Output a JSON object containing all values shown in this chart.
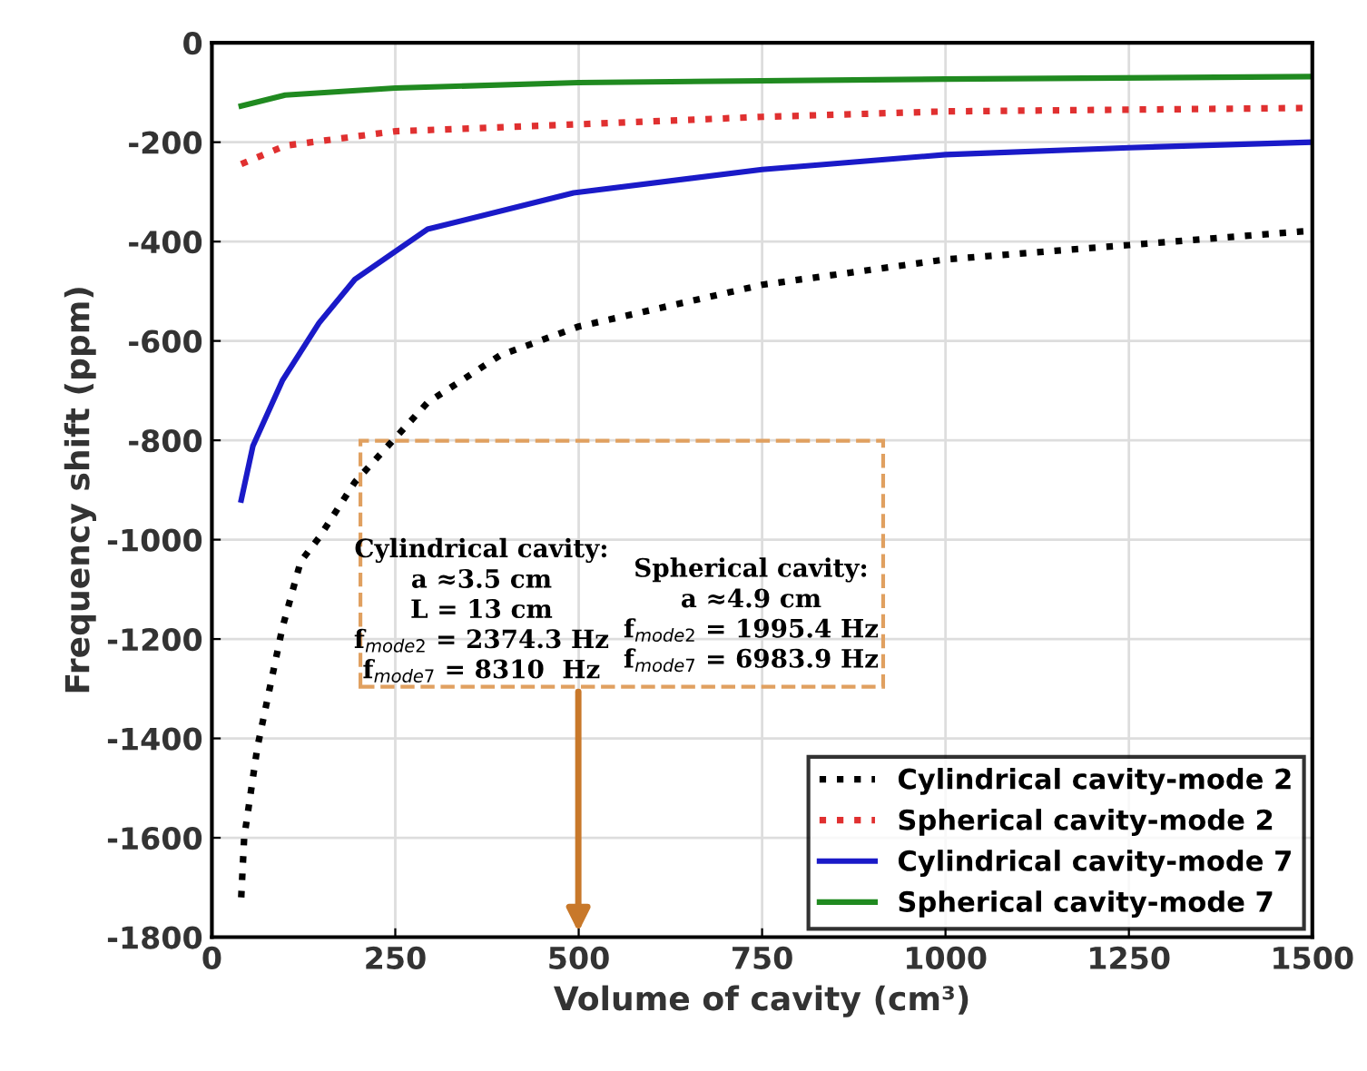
{
  "chart_data": {
    "type": "line",
    "xlabel": "Volume of cavity (cm³)",
    "ylabel": "Frequency shift (ppm)",
    "xlim": [
      0,
      1500
    ],
    "ylim": [
      -1800,
      0
    ],
    "xticks": [
      0,
      250,
      500,
      750,
      1000,
      1250,
      1500
    ],
    "yticks": [
      -1800,
      -1600,
      -1400,
      -1200,
      -1000,
      -800,
      -600,
      -400,
      -200,
      0
    ],
    "grid": true,
    "legend": "bottom right",
    "series": [
      {
        "name": "Cylindrical cavity-mode 2",
        "color": "#000000",
        "line_style": "dotted",
        "x": [
          40,
          44,
          62,
          96,
          121,
          146,
          195,
          294,
          393,
          500,
          750,
          1000,
          1250,
          1500
        ],
        "values": [
          -1720,
          -1600,
          -1418,
          -1178,
          -1044,
          -996,
          -884,
          -724,
          -629,
          -571,
          -487,
          -436,
          -407,
          -378
        ]
      },
      {
        "name": "Spherical cavity-mode 2",
        "color": "#e03030",
        "line_style": "dotted",
        "x": [
          40,
          100,
          250,
          500,
          750,
          1000,
          1500
        ],
        "values": [
          -244,
          -207,
          -178,
          -164,
          -149,
          -138,
          -131
        ]
      },
      {
        "name": "Cylindrical cavity-mode 7",
        "color": "#1a1ac8",
        "line_style": "solid",
        "x": [
          40,
          56,
          96,
          146,
          195,
          294,
          493,
          750,
          1000,
          1250,
          1500
        ],
        "values": [
          -920,
          -811,
          -680,
          -564,
          -476,
          -375,
          -302,
          -255,
          -225,
          -211,
          -200
        ]
      },
      {
        "name": "Spherical cavity-mode 7",
        "color": "#208a20",
        "line_style": "solid",
        "x": [
          40,
          100,
          250,
          500,
          1000,
          1500
        ],
        "values": [
          -127,
          -105,
          -91,
          -80,
          -73,
          -68
        ]
      }
    ],
    "annotations": [
      "Cylindrical cavity:\na ≈3.5 cm\nL = 13 cm\nf$_{mode2}$ = 2374.3 Hz\nf$_{mode7}$ = 8310  Hz",
      "Spherical cavity:\na ≈4.9 cm\nf$_{mode2}$ = 1995.4 Hz\nf$_{mode7}$ = 6983.9 Hz"
    ]
  }
}
